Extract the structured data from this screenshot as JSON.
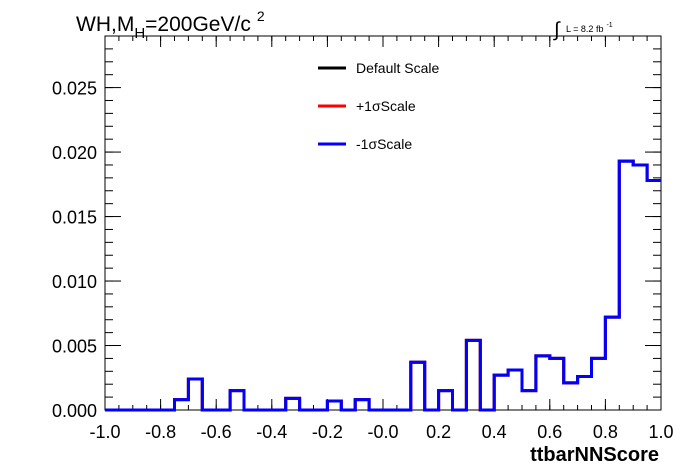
{
  "chart_data": {
    "type": "line",
    "title_main": "WH,M",
    "title_sub": "H",
    "title_rest": "=200GeV/c",
    "title_sup": "2",
    "lumi_integral": "∫",
    "lumi_label": "L = 8.2 fb",
    "lumi_sup": "-1",
    "xlabel": "ttbarNNScore",
    "ylabel": "",
    "xlim": [
      -1.0,
      1.0
    ],
    "ylim": [
      0.0,
      0.029
    ],
    "x_ticks": [
      -1.0,
      -0.8,
      -0.6,
      -0.4,
      -0.2,
      0.0,
      0.2,
      0.4,
      0.6,
      0.8,
      1.0
    ],
    "x_tick_labels": [
      "-1.0",
      "-0.8",
      "-0.6",
      "-0.4",
      "-0.2",
      "-0.0",
      "0.2",
      "0.4",
      "0.6",
      "0.8",
      "1.0"
    ],
    "y_ticks": [
      0.0,
      0.005,
      0.01,
      0.015,
      0.02,
      0.025
    ],
    "y_tick_labels": [
      "0.000",
      "0.005",
      "0.010",
      "0.015",
      "0.020",
      "0.025"
    ],
    "bin_edges": [
      -1.0,
      -0.95,
      -0.9,
      -0.85,
      -0.8,
      -0.75,
      -0.7,
      -0.65,
      -0.6,
      -0.55,
      -0.5,
      -0.45,
      -0.4,
      -0.35,
      -0.3,
      -0.25,
      -0.2,
      -0.15,
      -0.1,
      -0.05,
      0.0,
      0.05,
      0.1,
      0.15,
      0.2,
      0.25,
      0.3,
      0.35,
      0.4,
      0.45,
      0.5,
      0.55,
      0.6,
      0.65,
      0.7,
      0.75,
      0.8,
      0.85,
      0.9,
      0.95,
      1.0
    ],
    "legend_placement": "top-center",
    "series": [
      {
        "name": "Default Scale",
        "color": "#000000",
        "values": [
          0,
          0,
          0,
          0,
          0,
          0.0008,
          0.0024,
          0,
          0,
          0.0015,
          0,
          0,
          0,
          0.0009,
          0,
          0,
          0.0007,
          0,
          0.0008,
          0,
          0,
          0,
          0.0037,
          0,
          0.0015,
          0,
          0.0054,
          0,
          0.0027,
          0.0031,
          0.0015,
          0.0042,
          0.004,
          0.0021,
          0.0026,
          0.004,
          0.0072,
          0.0193,
          0.019,
          0.0178
        ]
      },
      {
        "name": "+1σScale",
        "color": "#ff0000",
        "values": [
          0,
          0,
          0,
          0,
          0,
          0.0008,
          0.0024,
          0,
          0,
          0.0015,
          0,
          0,
          0,
          0.0009,
          0,
          0,
          0.0007,
          0,
          0.0008,
          0,
          0,
          0,
          0.0037,
          0,
          0.0015,
          0,
          0.0054,
          0,
          0.0027,
          0.0031,
          0.0015,
          0.0042,
          0.004,
          0.0021,
          0.0026,
          0.004,
          0.0072,
          0.0193,
          0.019,
          0.0178
        ]
      },
      {
        "name": "-1σScale",
        "color": "#0000ff",
        "values": [
          0,
          0,
          0,
          0,
          0,
          0.0008,
          0.0024,
          0,
          0,
          0.0015,
          0,
          0,
          0,
          0.0009,
          0,
          0,
          0.0007,
          0,
          0.0008,
          0,
          0,
          0,
          0.0037,
          0,
          0.0015,
          0,
          0.0054,
          0,
          0.0027,
          0.0031,
          0.0015,
          0.0042,
          0.004,
          0.0021,
          0.0026,
          0.004,
          0.0072,
          0.0193,
          0.019,
          0.0178
        ]
      }
    ]
  }
}
